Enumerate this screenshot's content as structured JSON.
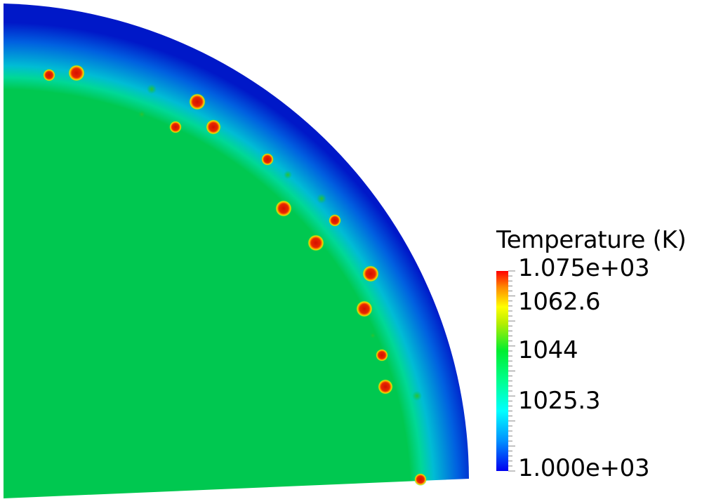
{
  "legend": {
    "title": "Temperature (K)",
    "labels": [
      "1.075e+03",
      "1062.6",
      "1044",
      "1025.3",
      "1.000e+03"
    ],
    "label_values": [
      1075,
      1062.6,
      1044,
      1025.3,
      1000
    ],
    "range": [
      1000,
      1075
    ],
    "colormap": [
      "#0000f0",
      "#0090ff",
      "#00ffff",
      "#00ffa0",
      "#00ee30",
      "#a8ee00",
      "#ffff00",
      "#ff8800",
      "#ff0000"
    ]
  },
  "field": {
    "interior_color": "#00c850",
    "rim_colors": [
      "#00c850",
      "#00d896",
      "#00bcd4",
      "#0060e0",
      "#0018c8"
    ],
    "hotspot_color": "#e01800",
    "hotspot_ring_color": "#e8e800"
  }
}
